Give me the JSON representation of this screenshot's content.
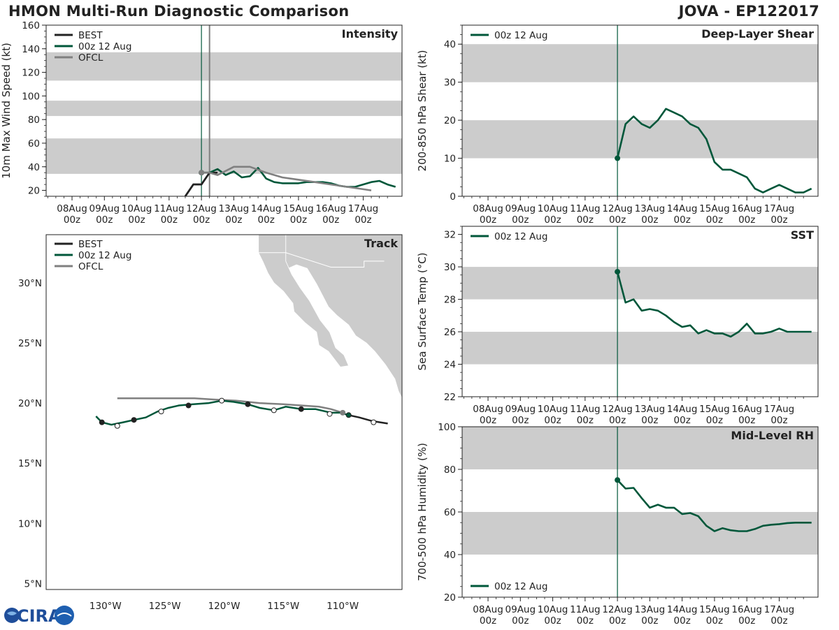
{
  "header": {
    "title_left": "HMON Multi-Run Diagnostic Comparison",
    "title_right": "JOVA - EP122017"
  },
  "time_axis": {
    "ticks": [
      {
        "day": "08Aug",
        "hour": "00z"
      },
      {
        "day": "09Aug",
        "hour": "00z"
      },
      {
        "day": "10Aug",
        "hour": "00z"
      },
      {
        "day": "11Aug",
        "hour": "00z"
      },
      {
        "day": "12Aug",
        "hour": "00z"
      },
      {
        "day": "13Aug",
        "hour": "00z"
      },
      {
        "day": "14Aug",
        "hour": "00z"
      },
      {
        "day": "15Aug",
        "hour": "00z"
      },
      {
        "day": "16Aug",
        "hour": "00z"
      },
      {
        "day": "17Aug",
        "hour": "00z"
      }
    ],
    "init_day": 4
  },
  "colors": {
    "best": "#222222",
    "run": "#00573a",
    "ofcl": "#808080",
    "band": "#cccccc",
    "land": "#cccccc"
  },
  "logo_text": "CIRA",
  "chart_data": [
    {
      "id": "intensity",
      "type": "line",
      "title": "Intensity",
      "ylabel": "10m Max Wind Speed (kt)",
      "ylim": [
        15,
        160
      ],
      "yticks": [
        20,
        40,
        60,
        80,
        100,
        120,
        140,
        160
      ],
      "xlim_days": [
        -0.8,
        10.2
      ],
      "bands": [
        [
          34,
          64
        ],
        [
          83,
          96
        ],
        [
          113,
          137
        ]
      ],
      "vlines": [
        {
          "day": 4,
          "color": "run"
        },
        {
          "day": 4.25,
          "color": "ofcl"
        }
      ],
      "legend": [
        "BEST",
        "00z 12 Aug",
        "OFCL"
      ],
      "series": [
        {
          "name": "BEST",
          "color": "best",
          "x": [
            3.5,
            3.5,
            3.75,
            4,
            4.25
          ],
          "y": [
            15,
            15,
            25,
            25,
            35
          ]
        },
        {
          "name": "BEST-tail",
          "color": "best",
          "x": [
            3.5,
            3.75,
            4.0,
            4.25,
            4.5
          ],
          "y": [
            15,
            25,
            25,
            35,
            35
          ]
        },
        {
          "name": "00z 12 Aug",
          "color": "run",
          "marker_first": true,
          "x": [
            4,
            4.25,
            4.5,
            4.75,
            5,
            5.25,
            5.5,
            5.75,
            6,
            6.25,
            6.5,
            6.75,
            7,
            7.25,
            7.5,
            7.75,
            8,
            8.25,
            8.5,
            8.75,
            9,
            9.25,
            9.5,
            9.75,
            10
          ],
          "y": [
            35,
            35,
            38,
            33,
            36,
            31,
            32,
            39,
            30,
            27,
            26,
            26,
            26,
            27,
            27,
            27,
            26,
            24,
            23,
            23,
            25,
            27,
            28,
            25,
            23
          ]
        },
        {
          "name": "OFCL",
          "color": "ofcl",
          "marker_first": true,
          "x": [
            4,
            4.25,
            4.5,
            5,
            5.5,
            6,
            6.5,
            7,
            7.5,
            8,
            8.5,
            9,
            9.25
          ],
          "y": [
            35,
            35,
            33,
            40,
            40,
            35,
            31,
            29,
            27,
            25,
            23,
            21,
            20
          ]
        }
      ]
    },
    {
      "id": "shear",
      "type": "line",
      "title": "Deep-Layer Shear",
      "ylabel": "200-850 hPa Shear (kt)",
      "ylim": [
        0,
        45
      ],
      "yticks": [
        0,
        10,
        20,
        30,
        40
      ],
      "xlim_days": [
        -0.8,
        10.2
      ],
      "bands": [
        [
          10,
          20
        ],
        [
          30,
          40
        ]
      ],
      "vlines": [
        {
          "day": 4,
          "color": "run"
        }
      ],
      "legend": [
        "00z 12 Aug"
      ],
      "series": [
        {
          "name": "00z 12 Aug",
          "color": "run",
          "marker_first": true,
          "x": [
            4,
            4.25,
            4.5,
            4.75,
            5,
            5.25,
            5.5,
            5.75,
            6,
            6.25,
            6.5,
            6.75,
            7,
            7.25,
            7.5,
            7.75,
            8,
            8.25,
            8.5,
            8.75,
            9,
            9.25,
            9.5,
            9.75,
            10
          ],
          "y": [
            10,
            19,
            21,
            19,
            18,
            20,
            23,
            22,
            21,
            19,
            18,
            15,
            9,
            7,
            7,
            6,
            5,
            2,
            1,
            2,
            3,
            2,
            1,
            1,
            2
          ]
        }
      ]
    },
    {
      "id": "sst",
      "type": "line",
      "title": "SST",
      "ylabel": "Sea Surface Temp (°C)",
      "ylim": [
        22,
        32.5
      ],
      "yticks": [
        22,
        24,
        26,
        28,
        30,
        32
      ],
      "xlim_days": [
        -0.8,
        10.2
      ],
      "bands": [
        [
          24,
          26
        ],
        [
          28,
          30
        ]
      ],
      "vlines": [
        {
          "day": 4,
          "color": "run"
        }
      ],
      "legend": [
        "00z 12 Aug"
      ],
      "series": [
        {
          "name": "00z 12 Aug",
          "color": "run",
          "marker_first": true,
          "x": [
            4,
            4.25,
            4.5,
            4.75,
            5,
            5.25,
            5.5,
            5.75,
            6,
            6.25,
            6.5,
            6.75,
            7,
            7.25,
            7.5,
            7.75,
            8,
            8.25,
            8.5,
            8.75,
            9,
            9.25,
            9.5,
            9.75,
            10
          ],
          "y": [
            29.7,
            27.8,
            28.0,
            27.3,
            27.4,
            27.3,
            27.0,
            26.6,
            26.3,
            26.4,
            25.9,
            26.1,
            25.9,
            25.9,
            25.7,
            26.0,
            26.5,
            25.9,
            25.9,
            26.0,
            26.2,
            26.0,
            26.0,
            26.0,
            26.0
          ]
        }
      ]
    },
    {
      "id": "rh",
      "type": "line",
      "title": "Mid-Level RH",
      "ylabel": "700-500 hPa Humidity (%)",
      "ylim": [
        20,
        100
      ],
      "yticks": [
        20,
        40,
        60,
        80,
        100
      ],
      "xlim_days": [
        -0.8,
        10.2
      ],
      "bands": [
        [
          40,
          60
        ],
        [
          80,
          100
        ]
      ],
      "vlines": [
        {
          "day": 4,
          "color": "run"
        }
      ],
      "legend": [
        "00z 12 Aug"
      ],
      "series": [
        {
          "name": "00z 12 Aug",
          "color": "run",
          "marker_first": true,
          "x": [
            4,
            4.25,
            4.5,
            4.75,
            5,
            5.25,
            5.5,
            5.75,
            6,
            6.25,
            6.5,
            6.75,
            7,
            7.25,
            7.5,
            7.75,
            8,
            8.25,
            8.5,
            8.75,
            9,
            9.25,
            9.5,
            9.75,
            10
          ],
          "y": [
            75,
            71,
            71.3,
            66.5,
            62,
            63.4,
            62,
            62,
            59,
            59.5,
            58,
            53.5,
            51,
            52.4,
            51.4,
            51,
            51,
            52,
            53.5,
            54,
            54.3,
            54.8,
            55,
            55,
            55
          ]
        }
      ]
    },
    {
      "id": "track",
      "type": "scatter",
      "title": "Track",
      "xlim": [
        -135,
        -105
      ],
      "ylim": [
        4.5,
        34
      ],
      "xticks": [
        -130,
        -125,
        -120,
        -115,
        -110
      ],
      "xtick_labels": [
        "130°W",
        "125°W",
        "120°W",
        "115°W",
        "110°W"
      ],
      "yticks": [
        5,
        10,
        15,
        20,
        25,
        30
      ],
      "ytick_labels": [
        "5°N",
        "10°N",
        "15°N",
        "20°N",
        "25°N",
        "30°N"
      ],
      "legend": [
        "BEST",
        "00z 12 Aug",
        "OFCL"
      ],
      "best_track": {
        "lon": [
          -106.2,
          -107.5,
          -108.6,
          -109.5
        ],
        "lat": [
          18.3,
          18.5,
          18.8,
          19.0
        ]
      },
      "run_track": {
        "lon": [
          -109.5,
          -110.2,
          -111.0,
          -112.3,
          -113.5,
          -114.8,
          -115.8,
          -117.0,
          -118.0,
          -119.2,
          -120.2,
          -121.3,
          -122.6,
          -123.8,
          -124.7,
          -125.6,
          -126.6,
          -127.6,
          -128.5,
          -129.5,
          -130.3,
          -130.8
        ],
        "lat": [
          19.0,
          19.2,
          19.2,
          19.5,
          19.5,
          19.7,
          19.4,
          19.6,
          19.9,
          20.1,
          20.2,
          20.0,
          19.9,
          19.8,
          19.6,
          19.3,
          18.8,
          18.6,
          18.4,
          18.2,
          18.4,
          18.9
        ]
      },
      "run_markers": [
        {
          "lon": -109.5,
          "lat": 19.0,
          "filled": true
        },
        {
          "lon": -111.1,
          "lat": 19.1,
          "filled": false
        },
        {
          "lon": -113.5,
          "lat": 19.5,
          "filled": true
        },
        {
          "lon": -115.8,
          "lat": 19.4,
          "filled": false
        },
        {
          "lon": -118.0,
          "lat": 19.9,
          "filled": true
        },
        {
          "lon": -120.2,
          "lat": 20.2,
          "filled": false
        },
        {
          "lon": -123.0,
          "lat": 19.8,
          "filled": true
        },
        {
          "lon": -125.3,
          "lat": 19.3,
          "filled": false
        },
        {
          "lon": -127.6,
          "lat": 18.6,
          "filled": true
        },
        {
          "lon": -129.0,
          "lat": 18.1,
          "filled": false
        },
        {
          "lon": -130.3,
          "lat": 18.4,
          "filled": true
        }
      ],
      "best_markers": [
        {
          "lon": -107.4,
          "lat": 18.4,
          "filled": false
        }
      ],
      "ofcl_track": {
        "lon": [
          -110.0,
          -111.0,
          -112.0,
          -113.5,
          -115.0,
          -117.0,
          -119.0,
          -121.0,
          -122.5,
          -124.5,
          -126.0,
          -127.5,
          -129.0
        ],
        "lat": [
          19.2,
          19.5,
          19.7,
          19.8,
          19.9,
          20.0,
          20.2,
          20.3,
          20.4,
          20.4,
          20.4,
          20.4,
          20.4
        ]
      },
      "ofcl_markers": [
        {
          "lon": -110.0,
          "lat": 19.2,
          "filled": true
        }
      ]
    }
  ]
}
